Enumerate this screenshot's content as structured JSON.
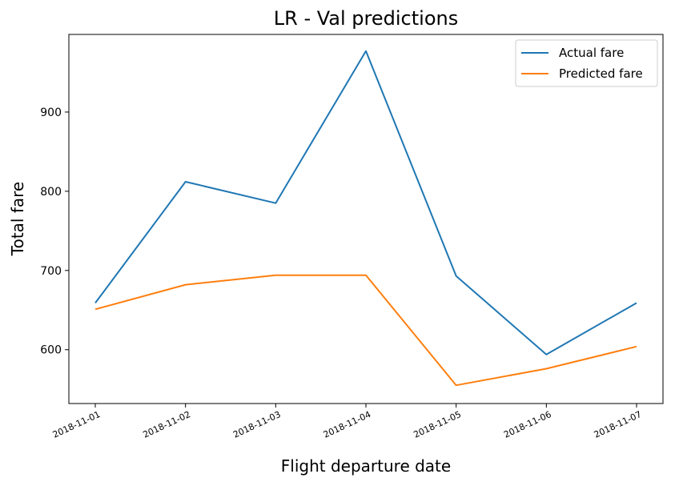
{
  "chart_data": {
    "type": "line",
    "title": "LR - Val predictions",
    "xlabel": "Flight departure date",
    "ylabel": "Total fare",
    "x": [
      "2018-11-01",
      "2018-11-02",
      "2018-11-03",
      "2018-11-04",
      "2018-11-05",
      "2018-11-06",
      "2018-11-07"
    ],
    "series": [
      {
        "name": "Actual fare",
        "color": "#1f77b4",
        "values": [
          659,
          812,
          785,
          977,
          693,
          594,
          659
        ]
      },
      {
        "name": "Predicted fare",
        "color": "#ff7f0e",
        "values": [
          651,
          682,
          694,
          694,
          555,
          576,
          604
        ]
      }
    ],
    "yticks": [
      600,
      700,
      800,
      900
    ],
    "ylim": [
      532,
      998
    ],
    "grid": false,
    "legend_position": "top-right"
  }
}
